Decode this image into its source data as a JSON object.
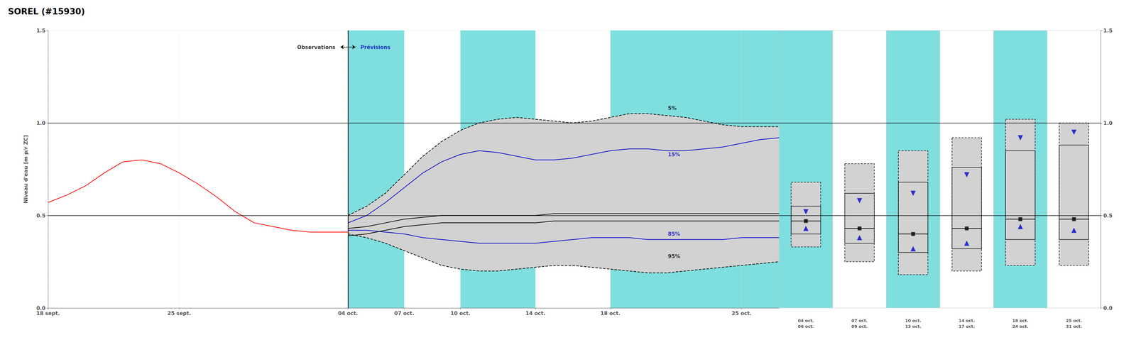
{
  "chart_data": {
    "type": "line",
    "title": "SOREL (#15930)",
    "ylabel": "Niveau d'eau [m p/r ZC]",
    "xlim": [
      0,
      39
    ],
    "xticks": [
      {
        "value": 0,
        "label": "18 sept."
      },
      {
        "value": 7,
        "label": "25 sept."
      },
      {
        "value": 16,
        "label": "04 oct."
      },
      {
        "value": 19,
        "label": "07 oct."
      },
      {
        "value": 22,
        "label": "10 oct."
      },
      {
        "value": 26,
        "label": "14 oct."
      },
      {
        "value": 30,
        "label": "18 oct."
      },
      {
        "value": 37,
        "label": "25 oct."
      }
    ],
    "ylim": [
      0.0,
      1.5
    ],
    "yticks": [
      {
        "value": 0.0,
        "label": "0.0"
      },
      0.5,
      {
        "value": 1.0,
        "label": "1.0"
      },
      1.5
    ],
    "grid": true,
    "series": [
      {
        "color": "#000000",
        "line_style": "dashed",
        "x": [
          16,
          17,
          18,
          19,
          20,
          21,
          22,
          23,
          24,
          25,
          26,
          27,
          28,
          29,
          30,
          31,
          32,
          33,
          34,
          35,
          36,
          37,
          38,
          39
        ],
        "values": [
          0.5,
          0.55,
          0.62,
          0.72,
          0.82,
          0.9,
          0.96,
          1.0,
          1.02,
          1.03,
          1.02,
          1.01,
          1.0,
          1.01,
          1.03,
          1.05,
          1.05,
          1.04,
          1.03,
          1.01,
          0.99,
          0.98,
          0.98,
          0.98
        ]
      },
      {
        "color": "#000000",
        "line_style": "dashed",
        "x": [
          16,
          17,
          18,
          19,
          20,
          21,
          22,
          23,
          24,
          25,
          26,
          27,
          28,
          29,
          30,
          31,
          32,
          33,
          34,
          35,
          36,
          37,
          38,
          39
        ],
        "values": [
          0.4,
          0.38,
          0.35,
          0.31,
          0.27,
          0.23,
          0.21,
          0.2,
          0.2,
          0.21,
          0.22,
          0.23,
          0.23,
          0.22,
          0.21,
          0.2,
          0.19,
          0.19,
          0.2,
          0.21,
          0.22,
          0.23,
          0.24,
          0.25
        ]
      },
      {
        "color": "#000000",
        "line_style": "solid",
        "x": [
          16,
          17,
          18,
          19,
          20,
          21,
          22,
          23,
          24,
          25,
          26,
          27,
          28,
          29,
          30,
          31,
          32,
          33,
          34,
          35,
          36,
          37,
          38,
          39
        ],
        "values": [
          0.43,
          0.44,
          0.46,
          0.48,
          0.49,
          0.5,
          0.5,
          0.5,
          0.5,
          0.5,
          0.5,
          0.51,
          0.51,
          0.51,
          0.51,
          0.51,
          0.51,
          0.51,
          0.51,
          0.51,
          0.51,
          0.51,
          0.51,
          0.51
        ]
      },
      {
        "color": "#0000cc",
        "line_style": "solid",
        "x": [
          16,
          17,
          18,
          19,
          20,
          21,
          22,
          23,
          24,
          25,
          26,
          27,
          28,
          29,
          30,
          31,
          32,
          33,
          34,
          35,
          36,
          37,
          38,
          39
        ],
        "values": [
          0.46,
          0.5,
          0.57,
          0.65,
          0.73,
          0.79,
          0.83,
          0.85,
          0.84,
          0.82,
          0.8,
          0.8,
          0.81,
          0.83,
          0.85,
          0.86,
          0.86,
          0.85,
          0.85,
          0.86,
          0.87,
          0.89,
          0.91,
          0.92
        ]
      },
      {
        "color": "#0000cc",
        "line_style": "solid",
        "x": [
          16,
          17,
          18,
          19,
          20,
          21,
          22,
          23,
          24,
          25,
          26,
          27,
          28,
          29,
          30,
          31,
          32,
          33,
          34,
          35,
          36,
          37,
          38,
          39
        ],
        "values": [
          0.42,
          0.42,
          0.41,
          0.4,
          0.38,
          0.37,
          0.36,
          0.35,
          0.35,
          0.35,
          0.35,
          0.36,
          0.37,
          0.38,
          0.38,
          0.38,
          0.37,
          0.37,
          0.37,
          0.37,
          0.37,
          0.38,
          0.38,
          0.38
        ]
      },
      {
        "color": "#000000",
        "line_style": "solid",
        "x": [
          16,
          17,
          18,
          19,
          20,
          21,
          22,
          23,
          24,
          25,
          26,
          27,
          28,
          29,
          30,
          31,
          32,
          33,
          34,
          35,
          36,
          37,
          38,
          39
        ],
        "values": [
          0.39,
          0.4,
          0.42,
          0.44,
          0.45,
          0.46,
          0.46,
          0.46,
          0.46,
          0.46,
          0.46,
          0.47,
          0.47,
          0.47,
          0.47,
          0.47,
          0.47,
          0.47,
          0.47,
          0.47,
          0.47,
          0.47,
          0.47,
          0.47
        ]
      },
      {
        "color": "#ff0000",
        "line_style": "solid",
        "x": [
          0,
          1,
          2,
          3,
          4,
          5,
          6,
          7,
          8,
          9,
          10,
          11,
          12,
          13,
          14,
          15,
          16
        ],
        "values": [
          0.57,
          0.61,
          0.66,
          0.73,
          0.79,
          0.8,
          0.78,
          0.73,
          0.67,
          0.6,
          0.52,
          0.46,
          0.44,
          0.42,
          0.41,
          0.41,
          0.41
        ]
      }
    ],
    "fill": {
      "color": "#d2d2d2",
      "x": [
        16,
        17,
        18,
        19,
        20,
        21,
        22,
        23,
        24,
        25,
        26,
        27,
        28,
        29,
        30,
        31,
        32,
        33,
        34,
        35,
        36,
        37,
        38,
        39
      ],
      "upper": [
        0.5,
        0.55,
        0.62,
        0.72,
        0.82,
        0.9,
        0.96,
        1.0,
        1.02,
        1.03,
        1.02,
        1.01,
        1.0,
        1.01,
        1.03,
        1.05,
        1.05,
        1.04,
        1.03,
        1.01,
        0.99,
        0.98,
        0.98,
        0.98
      ],
      "lower": [
        0.4,
        0.38,
        0.35,
        0.31,
        0.27,
        0.23,
        0.21,
        0.2,
        0.2,
        0.21,
        0.22,
        0.23,
        0.23,
        0.22,
        0.21,
        0.2,
        0.19,
        0.19,
        0.2,
        0.21,
        0.22,
        0.23,
        0.24,
        0.25
      ]
    },
    "bands": {
      "color": "#7FDEDE",
      "ranges": [
        [
          16,
          19
        ],
        [
          22,
          26
        ],
        [
          30,
          39
        ]
      ]
    },
    "hlines": {
      "values": [
        0.5,
        1.0
      ],
      "color": "#000000"
    },
    "divider": {
      "x": 16,
      "color": "#000000"
    },
    "annotations": [
      {
        "text": "5%",
        "x": 33,
        "y": 1.08,
        "color": "#000000"
      },
      {
        "text": "15%",
        "x": 33,
        "y": 0.83,
        "color": "#0000cc"
      },
      {
        "text": "85%",
        "x": 33,
        "y": 0.4,
        "color": "#0000cc"
      },
      {
        "text": "95%",
        "x": 33,
        "y": 0.28,
        "color": "#000000"
      },
      {
        "text": "Observations",
        "x": 15.4,
        "y": 1.41,
        "color": "#000000"
      },
      {
        "text": "Prévisions",
        "x": 16.6,
        "y": 1.41,
        "color": "#0000cc"
      }
    ],
    "arrow": {
      "x": [
        15.6,
        16.4
      ],
      "y": 1.41,
      "color": "#000000"
    },
    "boxes": {
      "fill_color": "#d2d2d2",
      "marker_color": "#0000cc",
      "line_color": "#000000",
      "columns": [
        {
          "label": "04 oct.\n06 oct.",
          "background": "#7FDEDE",
          "p5": 0.68,
          "p15": 0.55,
          "p50": 0.47,
          "p85": 0.4,
          "p95": 0.33,
          "tri_down": 0.52,
          "tri_up": 0.43,
          "sq": 0.47
        },
        {
          "label": "07 oct.\n09 oct.",
          "background": "#ffffff",
          "p5": 0.78,
          "p15": 0.62,
          "p50": 0.43,
          "p85": 0.35,
          "p95": 0.25,
          "tri_down": 0.58,
          "tri_up": 0.38,
          "sq": 0.43
        },
        {
          "label": "10 oct.\n13 oct.",
          "background": "#7FDEDE",
          "p5": 0.85,
          "p15": 0.68,
          "p50": 0.4,
          "p85": 0.3,
          "p95": 0.18,
          "tri_down": 0.62,
          "tri_up": 0.32,
          "sq": 0.4
        },
        {
          "label": "14 oct.\n17 oct.",
          "background": "#ffffff",
          "p5": 0.92,
          "p15": 0.76,
          "p50": 0.43,
          "p85": 0.32,
          "p95": 0.2,
          "tri_down": 0.72,
          "tri_up": 0.35,
          "sq": 0.43
        },
        {
          "label": "18 oct.\n24 oct.",
          "background": "#7FDEDE",
          "p5": 1.02,
          "p15": 0.85,
          "p50": 0.48,
          "p85": 0.37,
          "p95": 0.23,
          "tri_down": 0.92,
          "tri_up": 0.44,
          "sq": 0.48
        },
        {
          "label": "25 oct.\n31 oct.",
          "background": "#ffffff",
          "p5": 1.0,
          "p15": 0.88,
          "p50": 0.48,
          "p85": 0.37,
          "p95": 0.23,
          "tri_down": 0.95,
          "tri_up": 0.42,
          "sq": 0.48
        }
      ]
    }
  }
}
